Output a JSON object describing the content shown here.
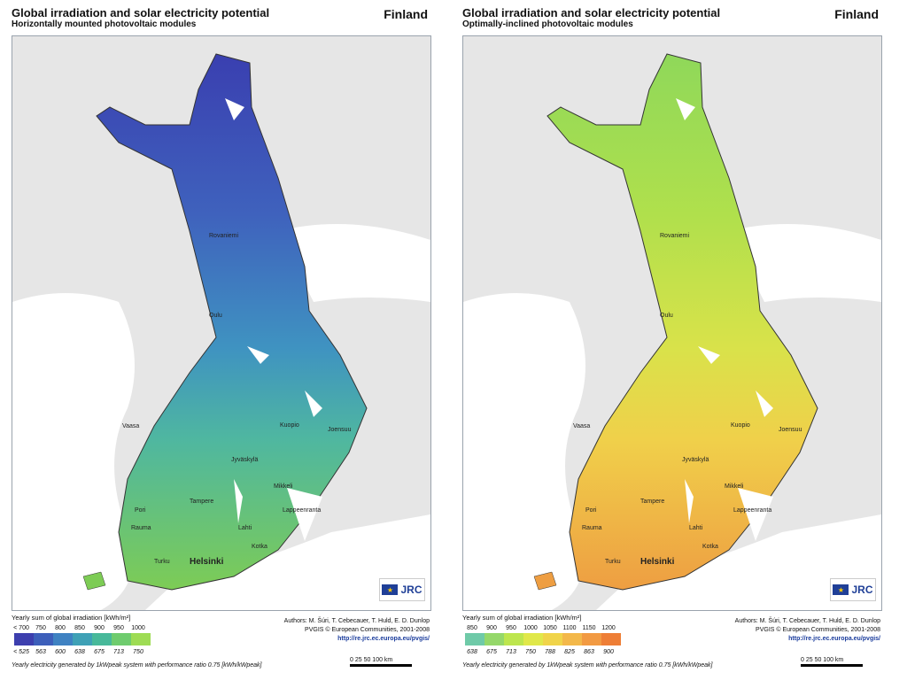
{
  "panels": [
    {
      "title": "Global irradiation and solar electricity potential",
      "subtitle": "Horizontally mounted photovoltaic modules",
      "country": "Finland",
      "legend_title": "Yearly sum of global irradiation [kWh/m²]",
      "legend_top": [
        "< 700",
        "750",
        "800",
        "850",
        "900",
        "950",
        "1000"
      ],
      "legend_bottom": [
        "< 525",
        "563",
        "600",
        "638",
        "675",
        "713",
        "750"
      ],
      "legend_colors": [
        "#3d3fae",
        "#3d5fba",
        "#3f82c2",
        "#3fa1b6",
        "#48b99a",
        "#6fcc6e",
        "#9edc54"
      ],
      "footnote": "Yearly electricity generated by 1kWpeak system with performance ratio 0.75 [kWh/kWpeak]",
      "authors": "Authors: M. Šúri, T. Cebecauer, T. Huld, E. D. Dunlop",
      "copyright": "PVGIS © European Communities, 2001-2008",
      "url": "http://re.jrc.ec.europa.eu/pvgis/",
      "scale_labels": "0  25 50       100 km",
      "map_colors": {
        "north": "#3a3fb0",
        "upper": "#3f62bd",
        "middle": "#3f93c1",
        "lower": "#4fb7a0",
        "south": "#7dcc55"
      }
    },
    {
      "title": "Global irradiation and solar electricity potential",
      "subtitle": "Optimally-inclined photovoltaic modules",
      "country": "Finland",
      "legend_title": "Yearly sum of global irradiation [kWh/m²]",
      "legend_top": [
        "850",
        "900",
        "950",
        "1000",
        "1050",
        "1100",
        "1150",
        "1200"
      ],
      "legend_bottom": [
        "638",
        "675",
        "713",
        "750",
        "788",
        "825",
        "863",
        "900"
      ],
      "legend_colors": [
        "#6fcaa8",
        "#95d86a",
        "#bde64e",
        "#e0e84a",
        "#f0d44a",
        "#f3b84a",
        "#f29a42",
        "#ee7e36"
      ],
      "footnote": "Yearly electricity generated by 1kWpeak system with performance ratio 0.75 [kWh/kWpeak]",
      "authors": "Authors: M. Šúri, T. Cebecauer, T. Huld, E. D. Dunlop",
      "copyright": "PVGIS © European Communities, 2001-2008",
      "url": "http://re.jrc.ec.europa.eu/pvgis/",
      "scale_labels": "0  25 50       100 km",
      "map_colors": {
        "north": "#8fd85a",
        "upper": "#b0e04c",
        "middle": "#d9e24a",
        "lower": "#f0d04a",
        "south": "#ee9e42"
      }
    }
  ],
  "cities": [
    "Rovaniemi",
    "Oulu",
    "Vaasa",
    "Kuopio",
    "Joensuu",
    "Jyväskylä",
    "Mikkeli",
    "Tampere",
    "Pori",
    "Rauma",
    "Lahti",
    "Lappeenranta",
    "Kotka",
    "Turku",
    "Helsinki"
  ],
  "logo_text": "JRC"
}
